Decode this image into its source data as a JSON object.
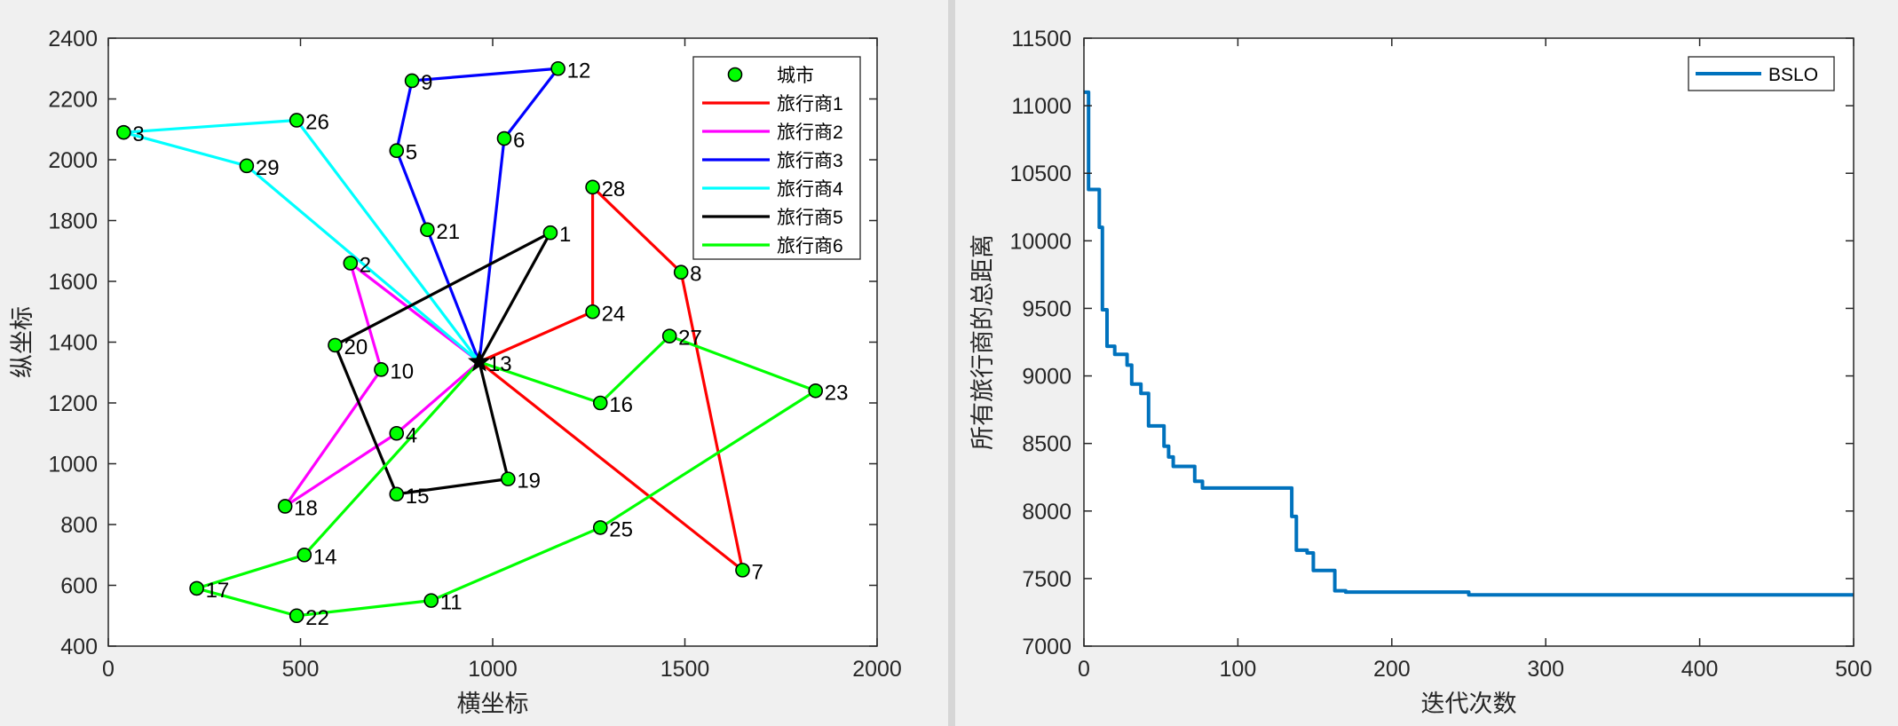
{
  "chart_data": [
    {
      "type": "scatter",
      "title": "",
      "xlabel": "横坐标",
      "ylabel": "纵坐标",
      "xlim": [
        0,
        2000
      ],
      "ylim": [
        400,
        2400
      ],
      "xticks": [
        0,
        500,
        1000,
        1500,
        2000
      ],
      "yticks": [
        400,
        600,
        800,
        1000,
        1200,
        1400,
        1600,
        1800,
        2000,
        2200,
        2400
      ],
      "grid": false,
      "legend_position": "top-right",
      "depot": {
        "id": "13",
        "x": 965,
        "y": 1335
      },
      "cities": [
        {
          "id": "1",
          "x": 1150,
          "y": 1760
        },
        {
          "id": "2",
          "x": 630,
          "y": 1660
        },
        {
          "id": "3",
          "x": 40,
          "y": 2090
        },
        {
          "id": "4",
          "x": 750,
          "y": 1100
        },
        {
          "id": "5",
          "x": 750,
          "y": 2030
        },
        {
          "id": "6",
          "x": 1030,
          "y": 2070
        },
        {
          "id": "7",
          "x": 1650,
          "y": 650
        },
        {
          "id": "8",
          "x": 1490,
          "y": 1630
        },
        {
          "id": "9",
          "x": 790,
          "y": 2260
        },
        {
          "id": "10",
          "x": 710,
          "y": 1310
        },
        {
          "id": "11",
          "x": 840,
          "y": 550
        },
        {
          "id": "12",
          "x": 1170,
          "y": 2300
        },
        {
          "id": "13",
          "x": 965,
          "y": 1335
        },
        {
          "id": "14",
          "x": 510,
          "y": 700
        },
        {
          "id": "15",
          "x": 750,
          "y": 900
        },
        {
          "id": "16",
          "x": 1280,
          "y": 1200
        },
        {
          "id": "17",
          "x": 230,
          "y": 590
        },
        {
          "id": "18",
          "x": 460,
          "y": 860
        },
        {
          "id": "19",
          "x": 1040,
          "y": 950
        },
        {
          "id": "20",
          "x": 590,
          "y": 1390
        },
        {
          "id": "21",
          "x": 830,
          "y": 1770
        },
        {
          "id": "22",
          "x": 490,
          "y": 500
        },
        {
          "id": "23",
          "x": 1840,
          "y": 1240
        },
        {
          "id": "24",
          "x": 1260,
          "y": 1500
        },
        {
          "id": "25",
          "x": 1280,
          "y": 790
        },
        {
          "id": "26",
          "x": 490,
          "y": 2130
        },
        {
          "id": "27",
          "x": 1460,
          "y": 1420
        },
        {
          "id": "28",
          "x": 1260,
          "y": 1910
        },
        {
          "id": "29",
          "x": 360,
          "y": 1980
        }
      ],
      "series": [
        {
          "name": "城市",
          "color": "#00ff00",
          "marker": "circle"
        },
        {
          "name": "旅行商1",
          "color": "#ff0000",
          "route": [
            "13",
            "24",
            "28",
            "8",
            "7",
            "13"
          ]
        },
        {
          "name": "旅行商2",
          "color": "#ff00ff",
          "route": [
            "13",
            "2",
            "10",
            "18",
            "4",
            "13"
          ]
        },
        {
          "name": "旅行商3",
          "color": "#0000ff",
          "route": [
            "13",
            "21",
            "5",
            "9",
            "12",
            "6",
            "13"
          ]
        },
        {
          "name": "旅行商4",
          "color": "#00ffff",
          "route": [
            "13",
            "29",
            "3",
            "26",
            "13"
          ]
        },
        {
          "name": "旅行商5",
          "color": "#000000",
          "route": [
            "13",
            "19",
            "15",
            "20",
            "1",
            "13"
          ]
        },
        {
          "name": "旅行商6",
          "color": "#00ff00",
          "route": [
            "13",
            "14",
            "17",
            "22",
            "11",
            "25",
            "23",
            "27",
            "16",
            "13"
          ]
        }
      ]
    },
    {
      "type": "line",
      "title": "",
      "xlabel": "迭代次数",
      "ylabel": "所有旅行商的总距离",
      "xlim": [
        0,
        500
      ],
      "ylim": [
        7000,
        11500
      ],
      "xticks": [
        0,
        100,
        200,
        300,
        400,
        500
      ],
      "yticks": [
        7000,
        7500,
        8000,
        8500,
        9000,
        9500,
        10000,
        10500,
        11000,
        11500
      ],
      "grid": false,
      "legend_position": "top-right",
      "series": [
        {
          "name": "BSLO",
          "color": "#0072bd",
          "step": true,
          "points": [
            [
              0,
              11100
            ],
            [
              3,
              10380
            ],
            [
              8,
              10380
            ],
            [
              10,
              10100
            ],
            [
              12,
              9490
            ],
            [
              15,
              9220
            ],
            [
              20,
              9160
            ],
            [
              28,
              9080
            ],
            [
              31,
              8940
            ],
            [
              37,
              8870
            ],
            [
              42,
              8630
            ],
            [
              52,
              8480
            ],
            [
              55,
              8400
            ],
            [
              58,
              8330
            ],
            [
              72,
              8220
            ],
            [
              77,
              8170
            ],
            [
              95,
              8170
            ],
            [
              133,
              8170
            ],
            [
              135,
              7960
            ],
            [
              138,
              7710
            ],
            [
              145,
              7690
            ],
            [
              149,
              7560
            ],
            [
              163,
              7410
            ],
            [
              170,
              7400
            ],
            [
              250,
              7380
            ],
            [
              500,
              7380
            ]
          ]
        }
      ]
    }
  ]
}
